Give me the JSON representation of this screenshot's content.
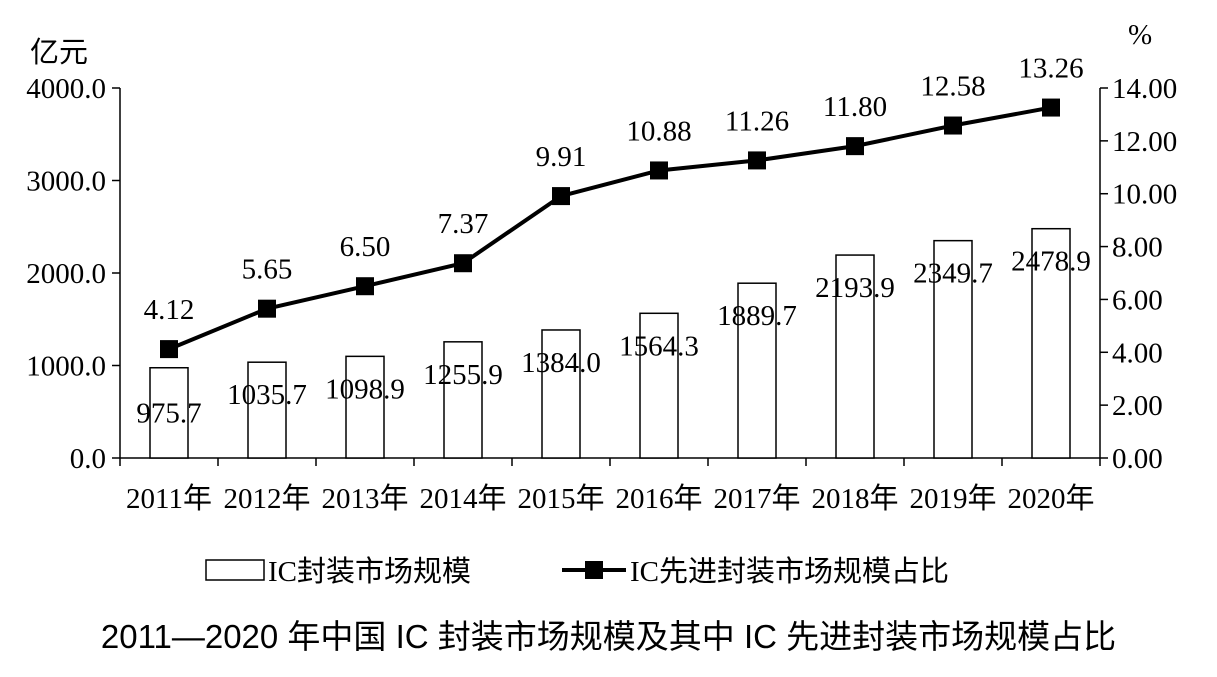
{
  "chart_data": {
    "type": "bar+line",
    "categories": [
      "2011年",
      "2012年",
      "2013年",
      "2014年",
      "2015年",
      "2016年",
      "2017年",
      "2018年",
      "2019年",
      "2020年"
    ],
    "series": [
      {
        "name": "IC封装市场规模",
        "type": "bar",
        "axis": "left",
        "values": [
          975.7,
          1035.7,
          1098.9,
          1255.9,
          1384.0,
          1564.3,
          1889.7,
          2193.9,
          2349.7,
          2478.9
        ],
        "labels": [
          "975.7",
          "1035.7",
          "1098.9",
          "1255.9",
          "1384.0",
          "1564.3",
          "1889.7",
          "2193.9",
          "2349.7",
          "2478.9"
        ]
      },
      {
        "name": "IC先进封装市场规模占比",
        "type": "line",
        "axis": "right",
        "marker": "square",
        "values": [
          4.12,
          5.65,
          6.5,
          7.37,
          9.91,
          10.88,
          11.26,
          11.8,
          12.58,
          13.26
        ],
        "labels": [
          "4.12",
          "5.65",
          "6.50",
          "7.37",
          "9.91",
          "10.88",
          "11.26",
          "11.80",
          "12.58",
          "13.26"
        ]
      }
    ],
    "y_left": {
      "unit": "亿元",
      "ylim": [
        0,
        4000
      ],
      "ticks": [
        0,
        1000,
        2000,
        3000,
        4000
      ],
      "tick_labels": [
        "0.0",
        "1000.0",
        "2000.0",
        "3000.0",
        "4000.0"
      ]
    },
    "y_right": {
      "unit": "%",
      "ylim": [
        0,
        14
      ],
      "ticks": [
        0,
        2,
        4,
        6,
        8,
        10,
        12,
        14
      ],
      "tick_labels": [
        "0.00",
        "2.00",
        "4.00",
        "6.00",
        "8.00",
        "10.00",
        "12.00",
        "14.00"
      ]
    },
    "legend_position": "bottom",
    "grid": false,
    "title": "2011—2020 年中国 IC 封装市场规模及其中 IC 先进封装市场规模占比",
    "colors": {
      "bar_fill": "#ffffff",
      "bar_stroke": "#000000",
      "line": "#000000",
      "marker": "#000000"
    }
  }
}
